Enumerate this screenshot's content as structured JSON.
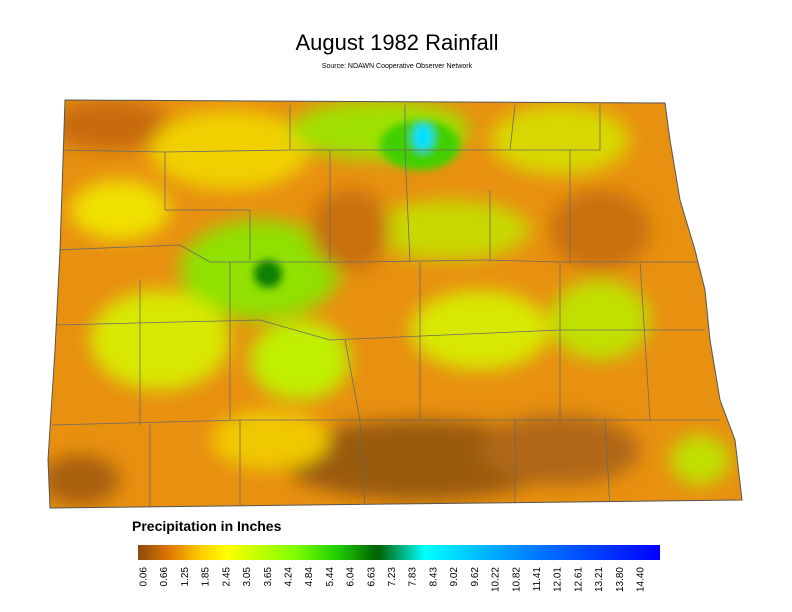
{
  "header": {
    "title": "August 1982 Rainfall",
    "source": "Source: NDAWN Cooperative Observer Network"
  },
  "legend": {
    "title": "Precipitation in Inches",
    "ticks": [
      "0.06",
      "0.66",
      "1.25",
      "1.85",
      "2.45",
      "3.05",
      "3.65",
      "4.24",
      "4.84",
      "5.44",
      "6.04",
      "6.63",
      "7.23",
      "7.83",
      "8.43",
      "9.02",
      "9.62",
      "10.22",
      "10.82",
      "11.41",
      "12.01",
      "12.61",
      "13.21",
      "13.80",
      "14.40"
    ]
  }
}
